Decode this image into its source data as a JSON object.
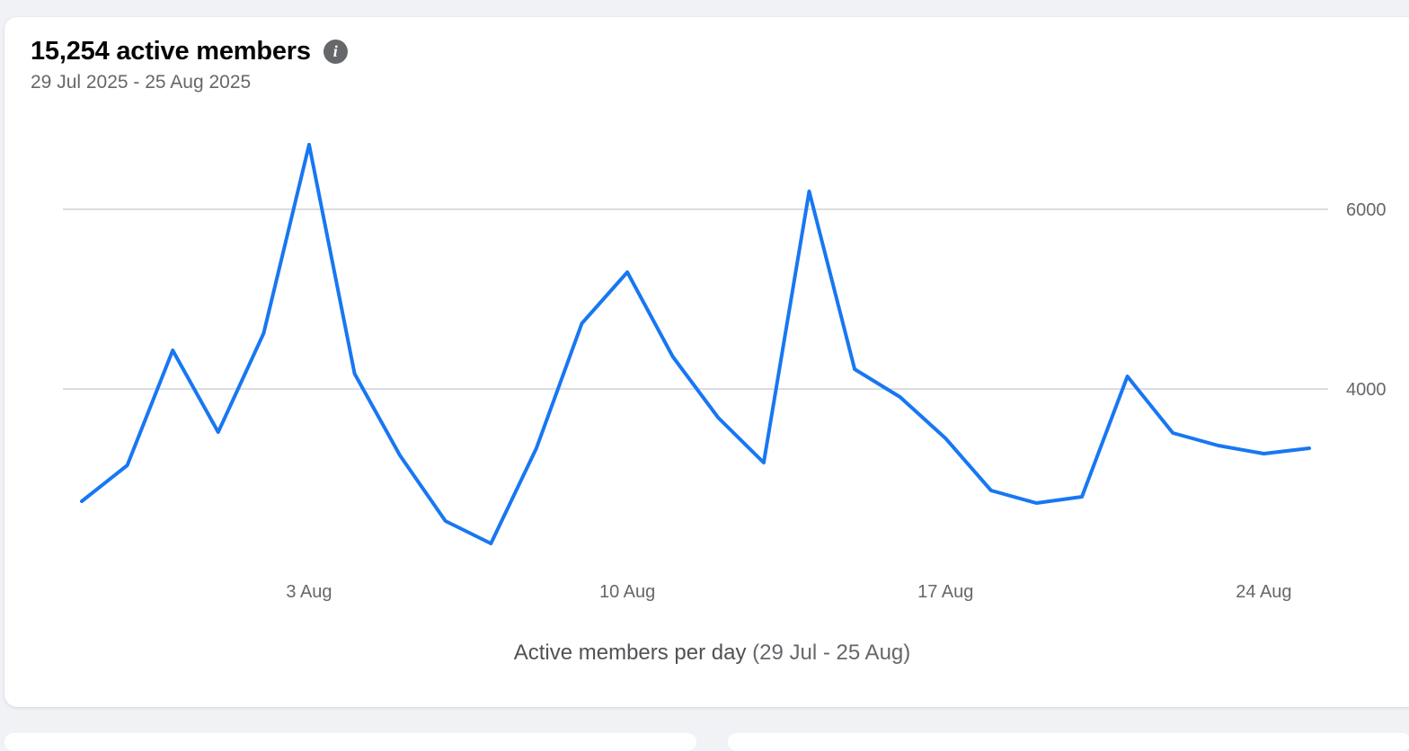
{
  "card": {
    "title": "15,254 active members",
    "info_icon": "info-icon",
    "date_range": "29 Jul 2025 - 25 Aug 2025",
    "caption_main": "Active members per day",
    "caption_range": "(29 Jul - 25 Aug)"
  },
  "colors": {
    "line": "#1877f2",
    "grid": "#cfd2d6",
    "text_secondary": "#65676b"
  },
  "chart_data": {
    "type": "line",
    "title": "15,254 active members",
    "subtitle": "29 Jul 2025 - 25 Aug 2025",
    "xlabel": "Active members per day (29 Jul - 25 Aug)",
    "ylabel": "",
    "x": [
      "29 Jul",
      "30 Jul",
      "31 Jul",
      "1 Aug",
      "2 Aug",
      "3 Aug",
      "4 Aug",
      "5 Aug",
      "6 Aug",
      "7 Aug",
      "8 Aug",
      "9 Aug",
      "10 Aug",
      "11 Aug",
      "12 Aug",
      "13 Aug",
      "14 Aug",
      "15 Aug",
      "16 Aug",
      "17 Aug",
      "18 Aug",
      "19 Aug",
      "20 Aug",
      "21 Aug",
      "22 Aug",
      "23 Aug",
      "24 Aug",
      "25 Aug"
    ],
    "values": [
      2750,
      3150,
      4430,
      3520,
      4620,
      6720,
      4170,
      3260,
      2530,
      2280,
      3340,
      4730,
      5300,
      4360,
      3680,
      3180,
      6200,
      4220,
      3910,
      3450,
      2870,
      2730,
      2800,
      4140,
      3510,
      3370,
      3280,
      3340
    ],
    "xticks": [
      {
        "label": "3 Aug",
        "index": 5
      },
      {
        "label": "10 Aug",
        "index": 12
      },
      {
        "label": "17 Aug",
        "index": 19
      },
      {
        "label": "24 Aug",
        "index": 26
      }
    ],
    "yticks": [
      4000,
      6000
    ],
    "ylim": [
      1700,
      7400
    ],
    "grid": true,
    "y_axis_side": "right"
  }
}
